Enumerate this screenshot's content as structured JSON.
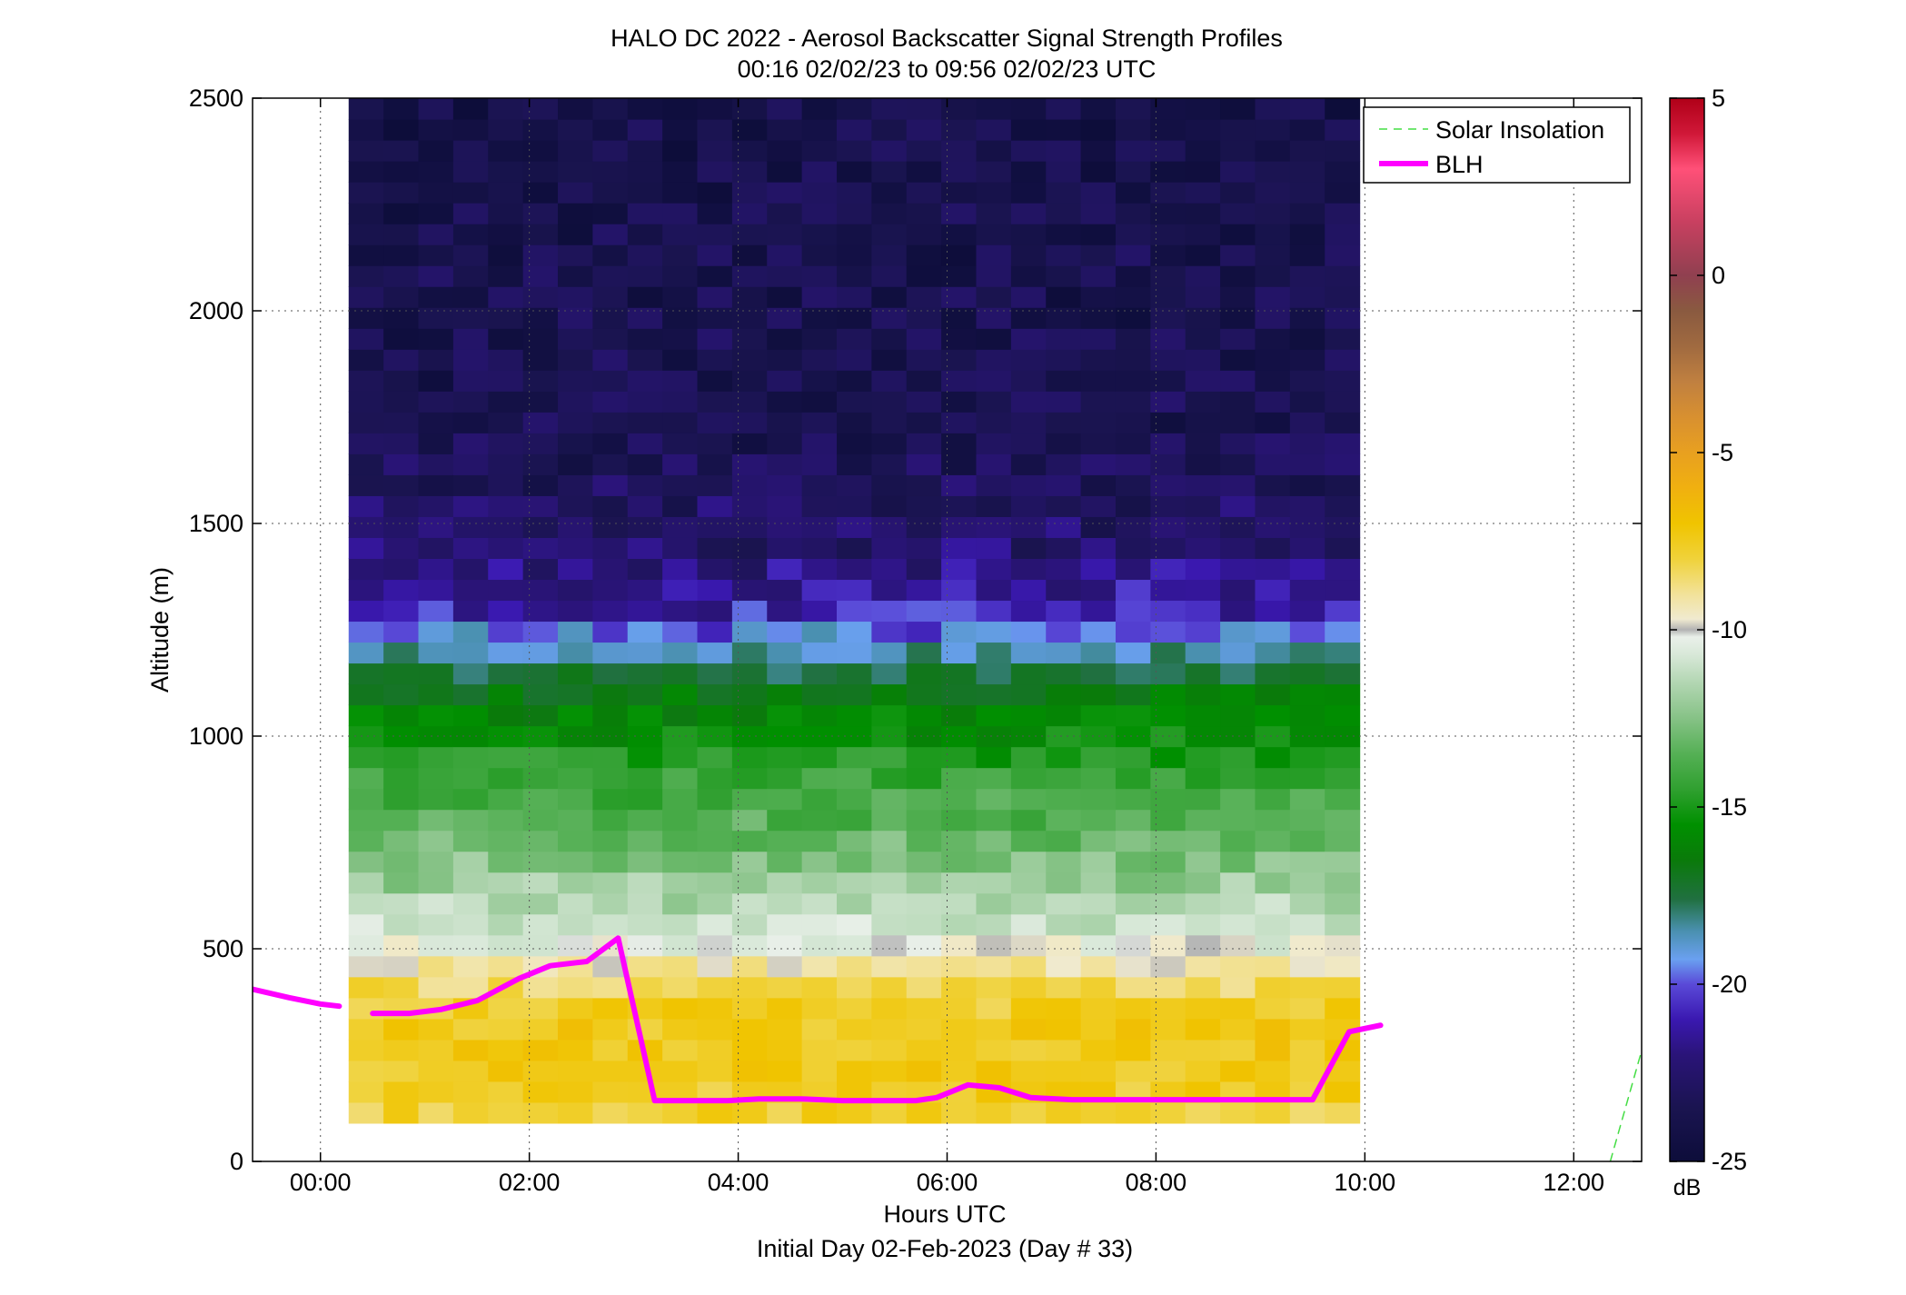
{
  "chart_data": {
    "type": "heatmap",
    "title": "HALO DC 2022 - Aerosol Backscatter Signal Strength Profiles",
    "subtitle": "00:16 02/02/23 to 09:56 02/02/23  UTC",
    "xlabel": "Hours UTC",
    "xlabel2": "Initial Day 02-Feb-2023 (Day # 33)",
    "ylabel": "Altitude (m)",
    "xlim": [
      -0.65,
      12.65
    ],
    "ylim": [
      0,
      2500
    ],
    "x_ticks": [
      0,
      2,
      4,
      6,
      8,
      10,
      12
    ],
    "x_tick_labels": [
      "00:00",
      "02:00",
      "04:00",
      "06:00",
      "08:00",
      "10:00",
      "12:00"
    ],
    "y_ticks": [
      0,
      500,
      1000,
      1500,
      2000,
      2500
    ],
    "y_tick_labels": [
      "0",
      "500",
      "1000",
      "1500",
      "2000",
      "2500"
    ],
    "grid": true,
    "colorbar": {
      "range": [
        -25,
        5
      ],
      "ticks": [
        5,
        0,
        -5,
        -10,
        -15,
        -20,
        -25
      ],
      "tick_labels": [
        "5",
        "0",
        "-5",
        "-10",
        "-15",
        "-20",
        "-25"
      ],
      "unit": "dB"
    },
    "heatmap": {
      "x_start": 0.27,
      "x_end": 9.95,
      "n_cols": 29,
      "y_start": 90,
      "y_end": 2500,
      "n_rows": 49,
      "value_unit": "dB",
      "description_profile": [
        [
          90,
          -8
        ],
        [
          180,
          -7.5
        ],
        [
          300,
          -7.3
        ],
        [
          380,
          -7.8
        ],
        [
          460,
          -9.3
        ],
        [
          520,
          -10.5
        ],
        [
          600,
          -11.5
        ],
        [
          700,
          -12.5
        ],
        [
          800,
          -13.5
        ],
        [
          900,
          -14.3
        ],
        [
          1000,
          -15.5
        ],
        [
          1100,
          -16.5
        ],
        [
          1200,
          -18.5
        ],
        [
          1300,
          -21
        ],
        [
          1450,
          -22.5
        ],
        [
          1700,
          -23.5
        ],
        [
          2500,
          -24
        ]
      ]
    },
    "series": [
      {
        "name": "Solar Insolation",
        "style": "dashed",
        "color": "#44dd44",
        "x": [
          12.35,
          12.65
        ],
        "y": [
          0,
          260
        ]
      },
      {
        "name": "BLH",
        "style": "solid",
        "color": "#ff00ff",
        "segments": [
          {
            "x": [
              -0.65,
              -0.3,
              0,
              0.18
            ],
            "y": [
              405,
              385,
              370,
              365
            ]
          },
          {
            "x": [
              0.5,
              0.85,
              1.15,
              1.5,
              1.9,
              2.2,
              2.55,
              2.85,
              3.2,
              3.6,
              3.9,
              4.2,
              4.6,
              5.0,
              5.4,
              5.7,
              5.9,
              6.2,
              6.5,
              6.8,
              7.2,
              7.6,
              8.0,
              8.4,
              8.8,
              9.1,
              9.5,
              9.85,
              10.15
            ],
            "y": [
              348,
              348,
              357,
              378,
              430,
              460,
              470,
              525,
              143,
              143,
              143,
              147,
              147,
              143,
              143,
              143,
              150,
              180,
              173,
              150,
              145,
              145,
              145,
              145,
              145,
              145,
              145,
              305,
              320
            ]
          }
        ]
      }
    ],
    "legend": {
      "placement": "top-right",
      "entries": [
        "Solar Insolation",
        "BLH"
      ]
    }
  }
}
